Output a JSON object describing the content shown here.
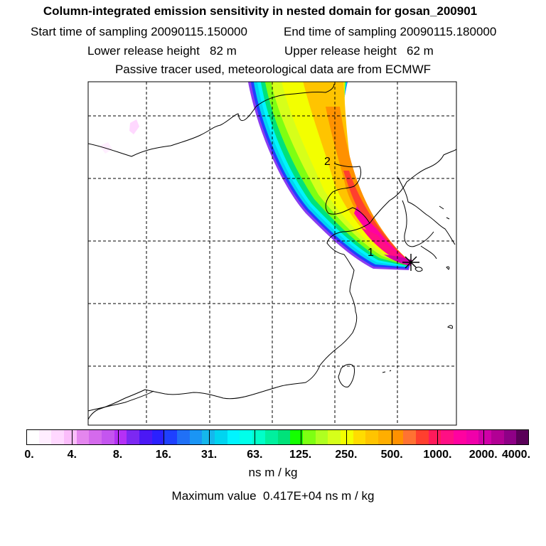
{
  "header": {
    "title": "Column-integrated emission sensitivity in nested domain for gosan_200901",
    "start_label": "Start time of sampling",
    "start_value": "20090115.150000",
    "end_label": "End time of sampling",
    "end_value": "20090115.180000",
    "lower_label": "Lower release height",
    "lower_value": "82 m",
    "upper_label": "Upper release height",
    "upper_value": "62 m",
    "note": "Passive tracer used, meteorological data are from ECMWF"
  },
  "map": {
    "labels": [
      {
        "text": "1"
      },
      {
        "text": "2"
      }
    ],
    "release_marker": "star-icon"
  },
  "colorbar": {
    "colors": [
      "#ffffff",
      "#ffeeff",
      "#ffd8ff",
      "#fbbdfb",
      "#e486ee",
      "#d46aec",
      "#c455ef",
      "#b530f6",
      "#7c28f2",
      "#4b18f5",
      "#2a20ff",
      "#1e40ff",
      "#2070f6",
      "#1a95f5",
      "#15b7ec",
      "#00d4f0",
      "#00f4ff",
      "#00ffea",
      "#00ffc8",
      "#00f09e",
      "#00e27a",
      "#14ff00",
      "#7eff12",
      "#afff20",
      "#d6ff1a",
      "#f3ff00",
      "#ffdc00",
      "#ffc400",
      "#ffae00",
      "#ff9100",
      "#ff7232",
      "#ff3f2e",
      "#ff1a5a",
      "#ff0f84",
      "#ff02a0",
      "#f000aa",
      "#d000a8",
      "#b20094",
      "#8e0086",
      "#5a0058"
    ],
    "tick_labels": [
      "0.",
      "4.",
      "8.",
      "16.",
      "31.",
      "63.",
      "125.",
      "250.",
      "500.",
      "1000.",
      "2000.",
      "4000."
    ],
    "units": "ns m / kg",
    "max_label": "Maximum value",
    "max_value": "0.417E+04 ns m / kg"
  }
}
